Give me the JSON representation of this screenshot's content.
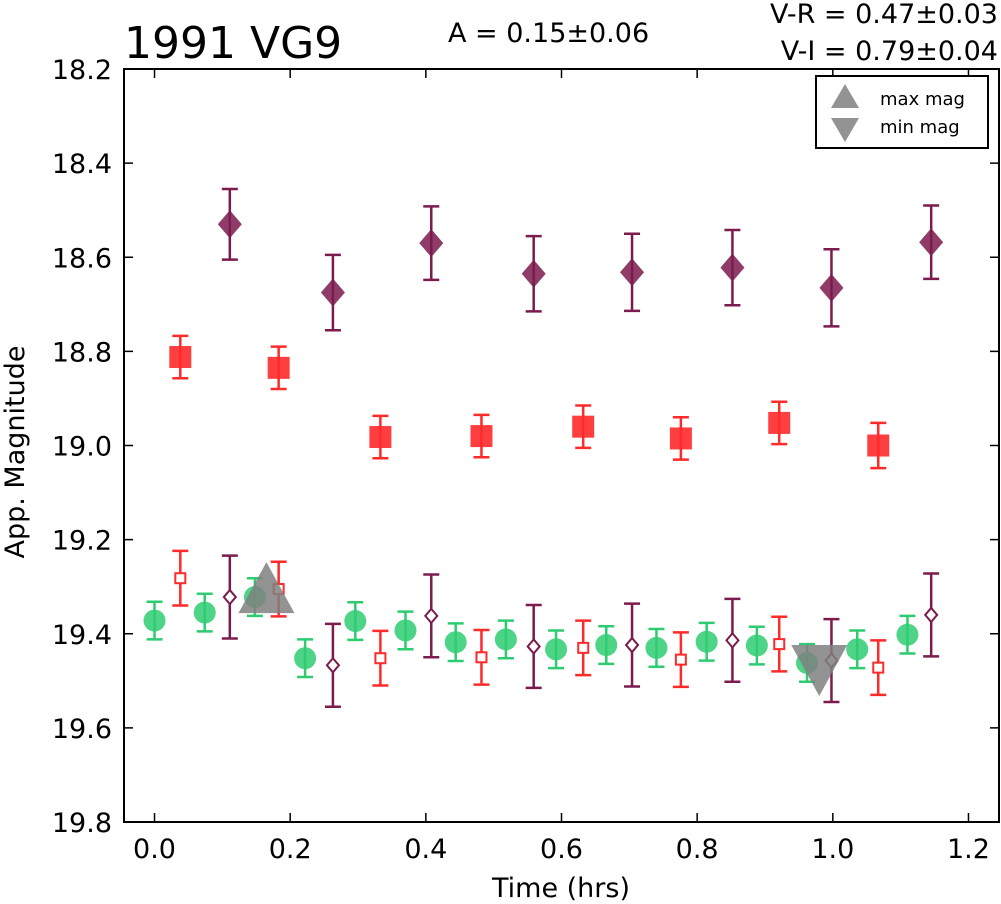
{
  "chart_data": {
    "type": "scatter",
    "title": "1991 VG9",
    "annotations": {
      "amplitude": "A  = 0.15±0.06",
      "v_r": "V-R = 0.47±0.03",
      "v_i": "V-I  = 0.79±0.04"
    },
    "xlabel": "Time (hrs)",
    "ylabel": "App. Magnitude",
    "xlim": [
      -0.045,
      1.245
    ],
    "ylim": [
      19.8,
      18.2
    ],
    "y_inverted": true,
    "x_ticks": [
      "0.0",
      "0.2",
      "0.4",
      "0.6",
      "0.8",
      "1.0",
      "1.2"
    ],
    "y_ticks": [
      "18.2",
      "18.4",
      "18.6",
      "18.8",
      "19.0",
      "19.2",
      "19.4",
      "19.6",
      "19.8"
    ],
    "x_tick_values": [
      0.0,
      0.2,
      0.4,
      0.6,
      0.8,
      1.0,
      1.2
    ],
    "y_tick_values": [
      18.2,
      18.4,
      18.6,
      18.8,
      19.0,
      19.2,
      19.4,
      19.6,
      19.8
    ],
    "grid": false,
    "legend_position": "top-right",
    "legend": [
      {
        "label": "max mag",
        "marker": "triangle-up",
        "color": "#808080"
      },
      {
        "label": "min mag",
        "marker": "triangle-down",
        "color": "#808080"
      }
    ],
    "colors": {
      "green": "#2ecc71",
      "red": "#ff2a2a",
      "purple": "#7b1b4e",
      "gray": "#808080"
    },
    "series": [
      {
        "marker": "diamond-filled",
        "color": "#7b1b4e",
        "x": [
          0.111,
          0.263,
          0.408,
          0.559,
          0.704,
          0.852,
          0.998,
          1.145
        ],
        "y": [
          18.53,
          18.675,
          18.57,
          18.635,
          18.632,
          18.622,
          18.665,
          18.568
        ],
        "err": [
          0.075,
          0.08,
          0.078,
          0.08,
          0.082,
          0.08,
          0.082,
          0.078
        ]
      },
      {
        "marker": "square-filled",
        "color": "#ff2a2a",
        "x": [
          0.038,
          0.183,
          0.333,
          0.482,
          0.632,
          0.776,
          0.921,
          1.067
        ],
        "y": [
          18.812,
          18.835,
          18.982,
          18.98,
          18.96,
          18.985,
          18.952,
          19.0
        ],
        "err": [
          0.045,
          0.045,
          0.045,
          0.045,
          0.045,
          0.045,
          0.045,
          0.048
        ]
      },
      {
        "marker": "circle-filled",
        "color": "#2ecc71",
        "x": [
          0.0,
          0.074,
          0.148,
          0.222,
          0.296,
          0.37,
          0.444,
          0.518,
          0.592,
          0.666,
          0.74,
          0.814,
          0.888,
          0.962,
          1.036,
          1.11
        ],
        "y": [
          19.372,
          19.355,
          19.322,
          19.452,
          19.373,
          19.393,
          19.418,
          19.412,
          19.433,
          19.424,
          19.43,
          19.417,
          19.425,
          19.462,
          19.433,
          19.402
        ],
        "err": [
          0.04,
          0.04,
          0.04,
          0.04,
          0.04,
          0.04,
          0.04,
          0.04,
          0.04,
          0.04,
          0.04,
          0.04,
          0.04,
          0.04,
          0.04,
          0.04
        ]
      },
      {
        "marker": "square-open",
        "color": "#ff2a2a",
        "x": [
          0.038,
          0.183,
          0.333,
          0.482,
          0.632,
          0.776,
          0.921,
          1.067
        ],
        "y": [
          19.282,
          19.305,
          19.452,
          19.45,
          19.43,
          19.455,
          19.422,
          19.472
        ],
        "err": [
          0.058,
          0.058,
          0.058,
          0.058,
          0.058,
          0.058,
          0.058,
          0.058
        ]
      },
      {
        "marker": "diamond-open",
        "color": "#7b1b4e",
        "x": [
          0.111,
          0.263,
          0.408,
          0.559,
          0.704,
          0.852,
          0.998,
          1.145
        ],
        "y": [
          19.322,
          19.467,
          19.362,
          19.427,
          19.424,
          19.414,
          19.457,
          19.36
        ],
        "err": [
          0.088,
          0.088,
          0.088,
          0.088,
          0.088,
          0.088,
          0.088,
          0.088
        ]
      },
      {
        "marker": "triangle-up",
        "color": "#808080",
        "label_ref": "max mag",
        "x": [
          0.165
        ],
        "y": [
          19.32
        ],
        "err": [
          0
        ]
      },
      {
        "marker": "triangle-down",
        "color": "#808080",
        "label_ref": "min mag",
        "x": [
          0.98
        ],
        "y": [
          19.46
        ],
        "err": [
          0
        ]
      }
    ]
  }
}
